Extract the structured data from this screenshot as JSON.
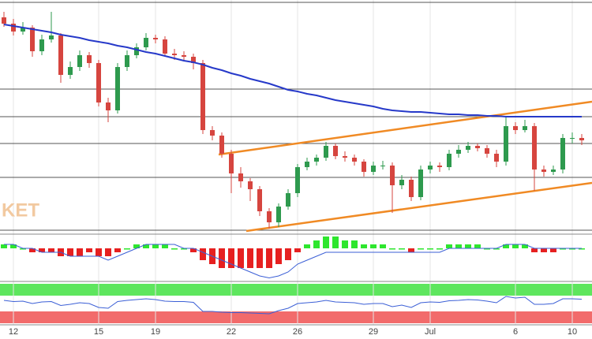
{
  "chart_data": {
    "type": "candlestick",
    "watermark": "KET",
    "categories": [
      null,
      "12",
      null,
      null,
      null,
      null,
      null,
      null,
      null,
      null,
      "15",
      null,
      null,
      null,
      null,
      null,
      "19",
      null,
      null,
      null,
      null,
      null,
      null,
      null,
      "22",
      null,
      null,
      null,
      null,
      null,
      null,
      "26",
      null,
      null,
      null,
      null,
      null,
      null,
      null,
      "29",
      null,
      null,
      null,
      null,
      null,
      "Jul",
      null,
      null,
      null,
      null,
      null,
      null,
      null,
      null,
      "6",
      null,
      null,
      null,
      null,
      null,
      "10",
      null
    ],
    "ylim": [
      8,
      300
    ],
    "up_color": "#2e9a4e",
    "down_color": "#d6453f",
    "open": [
      278,
      270,
      260,
      265,
      235,
      250,
      255,
      205,
      215,
      230,
      220,
      170,
      160,
      215,
      230,
      240,
      252,
      250,
      232,
      230,
      228,
      220,
      135,
      128,
      105,
      80,
      70,
      60,
      32,
      18,
      38,
      55,
      88,
      95,
      100,
      115,
      102,
      100,
      95,
      82,
      90,
      90,
      65,
      72,
      50,
      85,
      90,
      88,
      105,
      110,
      115,
      112,
      105,
      95,
      140,
      135,
      140,
      85,
      82,
      85,
      125,
      125
    ],
    "high": [
      285,
      276,
      272,
      268,
      256,
      285,
      258,
      222,
      236,
      234,
      224,
      176,
      220,
      236,
      245,
      258,
      256,
      254,
      238,
      235,
      232,
      224,
      140,
      132,
      110,
      88,
      74,
      64,
      36,
      42,
      60,
      92,
      100,
      104,
      120,
      118,
      108,
      104,
      98,
      95,
      96,
      94,
      78,
      76,
      90,
      95,
      94,
      110,
      116,
      120,
      118,
      116,
      110,
      152,
      145,
      148,
      144,
      90,
      90,
      130,
      132,
      130
    ],
    "low": [
      266,
      255,
      256,
      228,
      230,
      246,
      195,
      200,
      210,
      214,
      165,
      145,
      156,
      210,
      226,
      236,
      245,
      228,
      224,
      222,
      212,
      130,
      122,
      100,
      55,
      62,
      45,
      26,
      10,
      12,
      34,
      50,
      84,
      90,
      96,
      98,
      95,
      90,
      76,
      78,
      85,
      30,
      60,
      45,
      46,
      80,
      82,
      84,
      100,
      106,
      108,
      100,
      88,
      90,
      130,
      132,
      58,
      76,
      78,
      80,
      118,
      116
    ],
    "close": [
      270,
      260,
      265,
      235,
      250,
      255,
      205,
      215,
      230,
      220,
      170,
      160,
      215,
      230,
      240,
      252,
      250,
      232,
      230,
      228,
      220,
      135,
      128,
      105,
      80,
      70,
      60,
      32,
      18,
      38,
      55,
      88,
      95,
      100,
      115,
      102,
      100,
      95,
      82,
      90,
      90,
      65,
      72,
      50,
      85,
      90,
      88,
      105,
      110,
      115,
      112,
      105,
      95,
      140,
      135,
      140,
      85,
      82,
      85,
      125,
      125,
      122
    ],
    "sma": {
      "color": "#2639c9",
      "values": [
        269,
        267,
        265,
        263,
        261,
        259,
        256,
        254,
        252,
        249,
        247,
        245,
        242,
        240,
        237,
        234,
        232,
        229,
        226,
        223,
        221,
        218,
        214,
        211,
        207,
        204,
        200,
        197,
        194,
        190,
        186,
        184,
        181,
        179,
        176,
        173,
        171,
        169,
        167,
        165,
        162,
        160,
        159,
        158,
        158,
        157,
        156,
        155,
        155,
        154,
        154,
        153,
        153,
        152,
        152,
        152,
        152,
        152,
        152,
        152,
        152,
        152
      ]
    },
    "macd": {
      "ylim": [
        -8,
        3
      ],
      "histogram": [
        1,
        1,
        0,
        -1,
        -1,
        -1,
        -2,
        -2,
        -2,
        -1,
        -2,
        -2,
        -1,
        0,
        1,
        1,
        1,
        1,
        0,
        0,
        -1,
        -3,
        -4,
        -5,
        -5,
        -5,
        -5,
        -5,
        -5,
        -4,
        -3,
        -1,
        1,
        2,
        3,
        3,
        2,
        2,
        1,
        1,
        1,
        0,
        0,
        -1,
        0,
        0,
        0,
        1,
        1,
        1,
        1,
        0,
        0,
        1,
        1,
        1,
        -1,
        -1,
        -1,
        0,
        0,
        0
      ],
      "line_color": "#3b5fd6",
      "line": [
        1,
        1,
        0,
        0,
        -1,
        -1,
        -1,
        -2,
        -2,
        -2,
        -2,
        -3,
        -2,
        -1,
        0,
        1,
        1,
        1,
        1,
        0,
        0,
        -1,
        -2,
        -3,
        -4,
        -5,
        -6,
        -7,
        -7.5,
        -7,
        -6,
        -4,
        -3,
        -2,
        -1,
        -1,
        -1,
        -1,
        -1,
        -1,
        -1,
        -1,
        -1,
        -1,
        -1,
        -1,
        -1,
        0,
        0,
        0,
        0,
        0,
        0,
        1,
        1,
        1,
        0,
        0,
        0,
        0,
        0,
        0
      ]
    },
    "rsi": {
      "ylim": [
        0,
        100
      ],
      "overbought": 70,
      "oversold": 30,
      "color": "#3b5fd6",
      "values": [
        58,
        55,
        56,
        50,
        54,
        55,
        45,
        48,
        52,
        50,
        40,
        38,
        55,
        58,
        60,
        62,
        60,
        56,
        55,
        55,
        53,
        30,
        30,
        28,
        27,
        27,
        26,
        25,
        24,
        32,
        38,
        50,
        52,
        54,
        58,
        54,
        53,
        52,
        48,
        50,
        50,
        42,
        46,
        40,
        52,
        54,
        53,
        57,
        58,
        60,
        59,
        56,
        52,
        68,
        64,
        66,
        48,
        48,
        50,
        62,
        62,
        61
      ]
    }
  }
}
